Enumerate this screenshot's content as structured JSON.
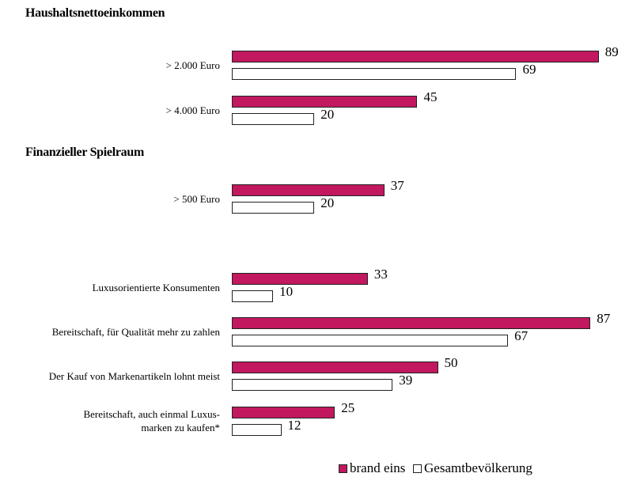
{
  "chart_data": {
    "type": "bar",
    "orientation": "horizontal",
    "section_titles": [
      "Haushaltsnettoeinkommen",
      "Finanzieller Spielraum"
    ],
    "categories": [
      "> 2.000 Euro",
      "> 4.000 Euro",
      "> 500 Euro",
      "Luxusorientierte Konsumenten",
      "Bereitschaft, für Qualität mehr zu zahlen",
      "Der Kauf von Markenartikeln lohnt meist",
      "Bereitschaft, auch einmal Luxus-\nmarken zu kaufen*"
    ],
    "series": [
      {
        "name": "brand eins",
        "color": "#c2185f",
        "values": [
          89,
          45,
          37,
          33,
          87,
          50,
          25
        ]
      },
      {
        "name": "Gesamtbevölkerung",
        "color": "#ffffff",
        "values": [
          69,
          20,
          20,
          10,
          67,
          39,
          12
        ]
      }
    ],
    "legend": "bottom-right"
  }
}
